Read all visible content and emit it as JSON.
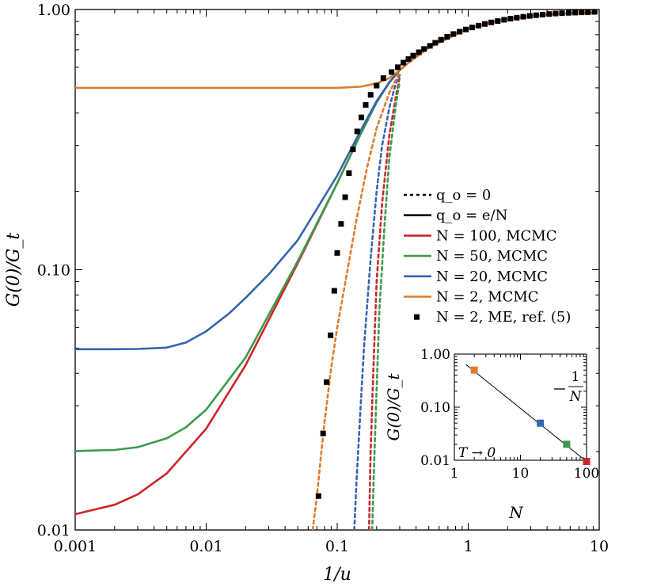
{
  "chart_data": {
    "type": "line",
    "xlabel": "1/u",
    "ylabel": "G(0)/G_t",
    "xscale": "log",
    "yscale": "log",
    "xlim": [
      0.001,
      10
    ],
    "ylim": [
      0.01,
      1.0
    ],
    "xticks": [
      "0.001",
      "0.01",
      "0.1",
      "1",
      "10"
    ],
    "yticks": [
      "0.01",
      "0.10",
      "1.00"
    ],
    "grid": false,
    "legend_position": "center-right",
    "legend": [
      {
        "label": "q_o = 0",
        "style": "dotted",
        "color": "#000000"
      },
      {
        "label": "q_o = e/N",
        "style": "solid",
        "color": "#000000"
      },
      {
        "label": "N = 100, MCMC",
        "style": "solid",
        "color": "#cc2529"
      },
      {
        "label": "N = 50, MCMC",
        "style": "solid",
        "color": "#3d9a4b"
      },
      {
        "label": "N = 20, MCMC",
        "style": "solid",
        "color": "#3565ae"
      },
      {
        "label": "N = 2, MCMC",
        "style": "solid",
        "color": "#e07b2d"
      },
      {
        "label": "N = 2, ME, ref. (5)",
        "style": "marker",
        "color": "#000000"
      }
    ],
    "series": [
      {
        "name": "N = 100, MCMC",
        "color": "#cc2529",
        "style": "solid",
        "x": [
          0.001,
          0.002,
          0.003,
          0.005,
          0.01,
          0.02,
          0.05,
          0.1,
          0.15,
          0.2,
          0.25,
          0.3,
          0.35,
          0.5,
          0.7,
          1.0,
          1.5,
          2.0,
          3.0,
          5.0,
          7.0,
          10.0
        ],
        "y": [
          0.0115,
          0.0125,
          0.0137,
          0.0165,
          0.0245,
          0.043,
          0.106,
          0.215,
          0.33,
          0.44,
          0.525,
          0.585,
          0.625,
          0.715,
          0.79,
          0.845,
          0.895,
          0.92,
          0.945,
          0.965,
          0.97,
          0.975
        ]
      },
      {
        "name": "N = 50, MCMC",
        "color": "#3d9a4b",
        "style": "solid",
        "x": [
          0.001,
          0.002,
          0.003,
          0.005,
          0.007,
          0.01,
          0.02,
          0.05,
          0.1,
          0.15,
          0.2,
          0.25,
          0.3,
          0.35,
          0.5,
          1.0,
          2.0,
          5.0,
          10.0
        ],
        "y": [
          0.0201,
          0.0203,
          0.0208,
          0.0225,
          0.0248,
          0.029,
          0.046,
          0.108,
          0.215,
          0.33,
          0.44,
          0.525,
          0.585,
          0.625,
          0.715,
          0.845,
          0.92,
          0.965,
          0.975
        ]
      },
      {
        "name": "N = 20, MCMC",
        "color": "#3565ae",
        "style": "solid",
        "x": [
          0.001,
          0.002,
          0.003,
          0.005,
          0.007,
          0.01,
          0.015,
          0.02,
          0.03,
          0.05,
          0.1,
          0.15,
          0.2,
          0.25,
          0.3,
          0.35,
          0.5,
          1.0,
          2.0,
          5.0,
          10.0
        ],
        "y": [
          0.0495,
          0.0495,
          0.0496,
          0.0502,
          0.0525,
          0.058,
          0.068,
          0.078,
          0.096,
          0.13,
          0.23,
          0.34,
          0.445,
          0.525,
          0.585,
          0.625,
          0.715,
          0.845,
          0.92,
          0.965,
          0.975
        ]
      },
      {
        "name": "N = 2, MCMC",
        "color": "#e07b2d",
        "style": "solid",
        "x": [
          0.001,
          0.01,
          0.05,
          0.1,
          0.15,
          0.2,
          0.25,
          0.3,
          0.35,
          0.5,
          1.0,
          2.0,
          5.0,
          10.0
        ],
        "y": [
          0.5,
          0.5,
          0.5,
          0.5,
          0.505,
          0.52,
          0.545,
          0.585,
          0.625,
          0.715,
          0.845,
          0.92,
          0.965,
          0.975
        ]
      },
      {
        "name": "N = 100, q_o = 0",
        "color": "#cc2529",
        "style": "dotted",
        "x": [
          0.175,
          0.18,
          0.19,
          0.2,
          0.22,
          0.25,
          0.28,
          0.3
        ],
        "y": [
          0.01,
          0.02,
          0.045,
          0.09,
          0.18,
          0.33,
          0.46,
          0.55
        ]
      },
      {
        "name": "N = 50, q_o = 0",
        "color": "#3d9a4b",
        "style": "dotted",
        "x": [
          0.185,
          0.19,
          0.2,
          0.21,
          0.23,
          0.25,
          0.28,
          0.3
        ],
        "y": [
          0.01,
          0.016,
          0.035,
          0.07,
          0.15,
          0.27,
          0.43,
          0.53
        ]
      },
      {
        "name": "N = 20, q_o = 0",
        "color": "#3565ae",
        "style": "dotted",
        "x": [
          0.135,
          0.14,
          0.15,
          0.16,
          0.18,
          0.2,
          0.22,
          0.25,
          0.28,
          0.3
        ],
        "y": [
          0.01,
          0.015,
          0.028,
          0.05,
          0.11,
          0.2,
          0.3,
          0.42,
          0.52,
          0.56
        ]
      },
      {
        "name": "N = 2, q_o = 0",
        "color": "#e07b2d",
        "style": "dotted",
        "x": [
          0.065,
          0.07,
          0.075,
          0.08,
          0.09,
          0.1,
          0.12,
          0.14,
          0.17,
          0.2,
          0.25,
          0.3
        ],
        "y": [
          0.01,
          0.0135,
          0.019,
          0.026,
          0.042,
          0.06,
          0.1,
          0.155,
          0.25,
          0.35,
          0.48,
          0.575
        ]
      },
      {
        "name": "N = 2, ME, ref. (5)",
        "color": "#000000",
        "style": "marker",
        "x": [
          0.072,
          0.078,
          0.083,
          0.089,
          0.095,
          0.1,
          0.107,
          0.115,
          0.123,
          0.132,
          0.142,
          0.153,
          0.165,
          0.18,
          0.2,
          0.225,
          0.26,
          0.29,
          0.32,
          0.35,
          0.38,
          0.42,
          0.46,
          0.51,
          0.56,
          0.62,
          0.69,
          0.77,
          0.86,
          0.96,
          1.07,
          1.2,
          1.34,
          1.5,
          1.68,
          1.88,
          2.1,
          2.35,
          2.63,
          2.95,
          3.3,
          3.7,
          4.15,
          4.65,
          5.2,
          5.85,
          6.55,
          7.35,
          8.2,
          9.2
        ],
        "y": [
          0.0135,
          0.0235,
          0.037,
          0.056,
          0.083,
          0.116,
          0.15,
          0.19,
          0.235,
          0.29,
          0.34,
          0.385,
          0.43,
          0.47,
          0.51,
          0.545,
          0.575,
          0.6,
          0.625,
          0.645,
          0.665,
          0.685,
          0.705,
          0.725,
          0.745,
          0.765,
          0.785,
          0.805,
          0.822,
          0.838,
          0.853,
          0.867,
          0.88,
          0.892,
          0.903,
          0.913,
          0.922,
          0.93,
          0.938,
          0.945,
          0.951,
          0.956,
          0.961,
          0.965,
          0.968,
          0.971,
          0.973,
          0.975,
          0.977,
          0.979
        ]
      }
    ],
    "inset": {
      "type": "scatter",
      "xlabel": "N",
      "ylabel": "G(0)/G_t",
      "xscale": "log",
      "yscale": "log",
      "xlim": [
        1,
        100
      ],
      "ylim": [
        0.01,
        1.0
      ],
      "xticks": [
        "1",
        "10",
        "100"
      ],
      "yticks": [
        "0.01",
        "0.10",
        "1.00"
      ],
      "annotation_condition": "T → 0",
      "line_label": "1/N",
      "points": [
        {
          "N": 2,
          "value": 0.5,
          "color": "#e07b2d"
        },
        {
          "N": 20,
          "value": 0.05,
          "color": "#3565ae"
        },
        {
          "N": 50,
          "value": 0.02,
          "color": "#3d9a4b"
        },
        {
          "N": 100,
          "value": 0.0095,
          "color": "#cc2529"
        }
      ]
    }
  }
}
